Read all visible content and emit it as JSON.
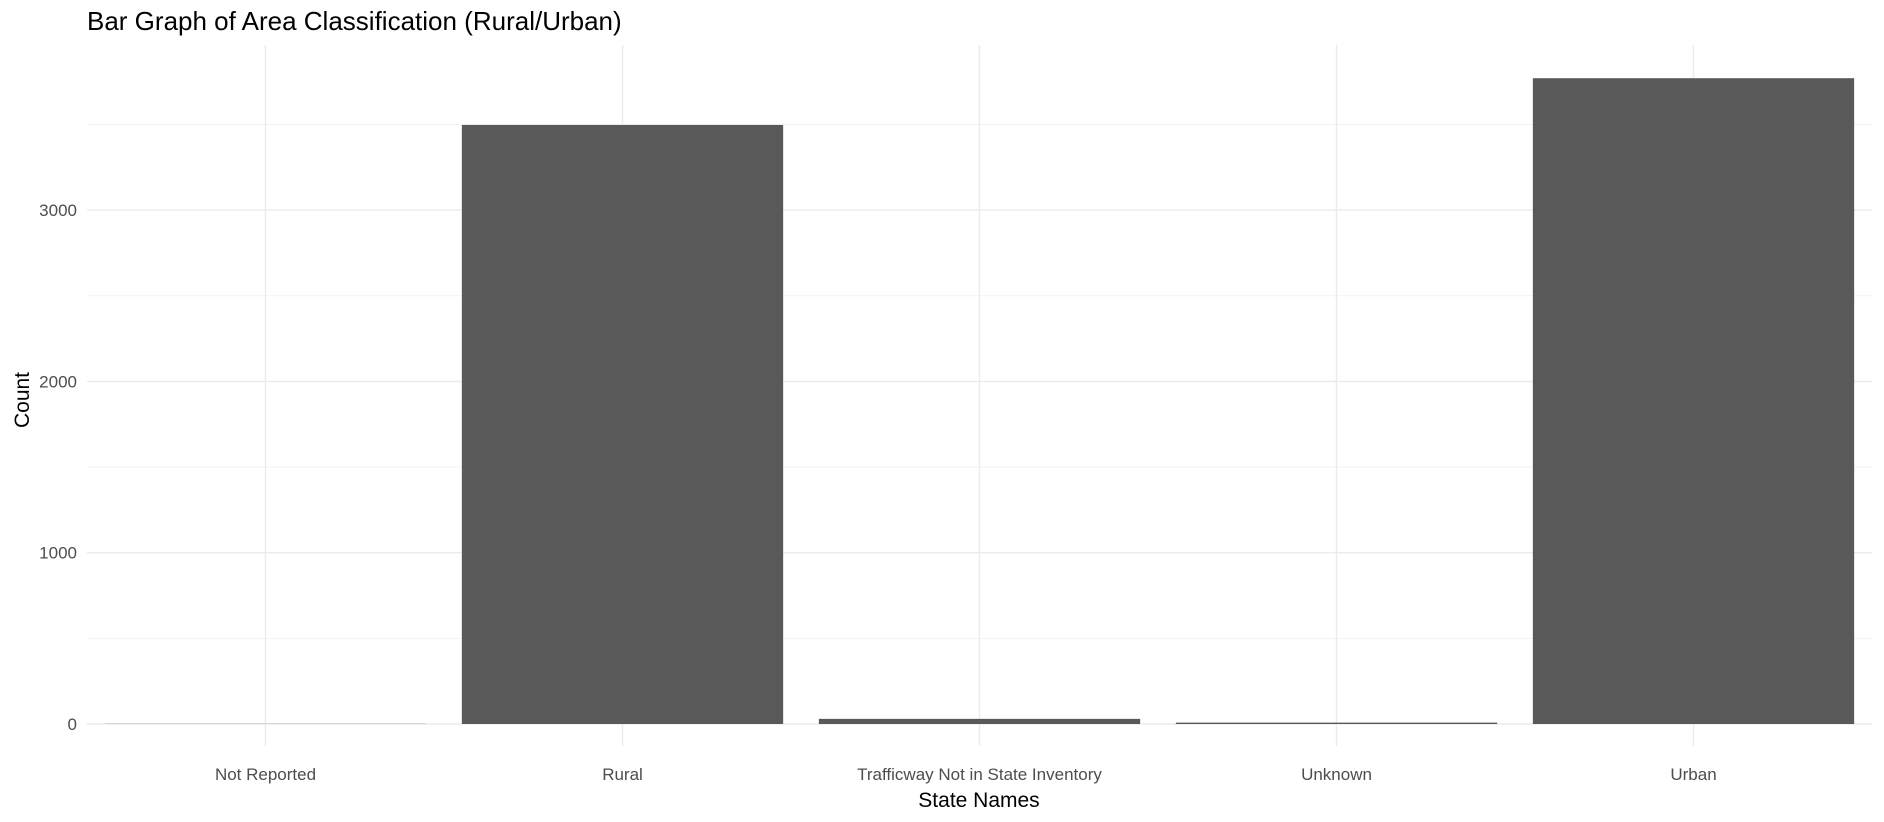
{
  "chart_data": {
    "type": "bar",
    "title": "Bar Graph of Area Classification (Rural/Urban)",
    "xlabel": "State Names",
    "ylabel": "Count",
    "categories": [
      "Not Reported",
      "Rural",
      "Trafficway Not in State Inventory",
      "Unknown",
      "Urban"
    ],
    "values": [
      1,
      3497,
      30,
      8,
      3770
    ],
    "yticks": [
      0,
      1000,
      2000,
      3000
    ],
    "ylim": [
      0,
      3950
    ],
    "grid": true,
    "bar_color": "#595959"
  }
}
